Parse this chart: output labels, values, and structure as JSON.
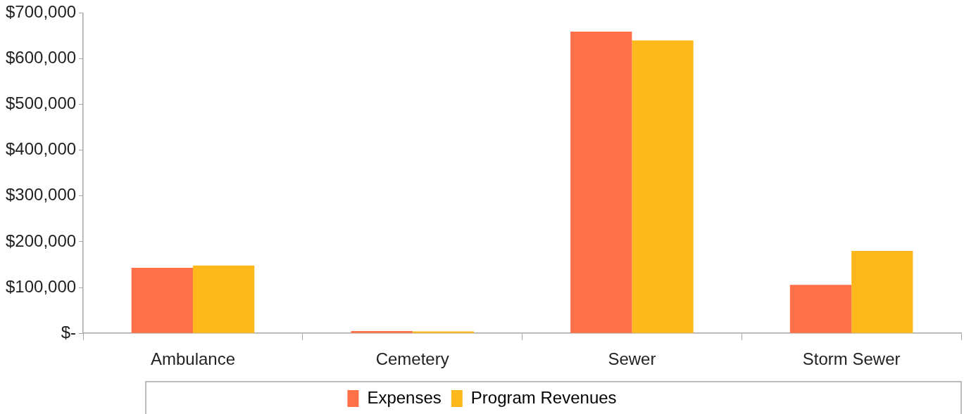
{
  "chart_data": {
    "type": "bar",
    "categories": [
      "Ambulance",
      "Cemetery",
      "Sewer",
      "Storm Sewer"
    ],
    "series": [
      {
        "name": "Expenses",
        "color": "#ff7049",
        "values": [
          143000,
          5000,
          659000,
          106000
        ]
      },
      {
        "name": "Program Revenues",
        "color": "#ffb81c",
        "values": [
          148000,
          4000,
          640000,
          180000
        ]
      }
    ],
    "ylim": [
      0,
      700000
    ],
    "yticks": [
      {
        "value": 0,
        "label": "$-"
      },
      {
        "value": 100000,
        "label": "$100,000"
      },
      {
        "value": 200000,
        "label": "$200,000"
      },
      {
        "value": 300000,
        "label": "$300,000"
      },
      {
        "value": 400000,
        "label": "$400,000"
      },
      {
        "value": 500000,
        "label": "$500,000"
      },
      {
        "value": 600000,
        "label": "$600,000"
      },
      {
        "value": 700000,
        "label": "$700,000"
      }
    ],
    "grid": false,
    "legend": "bottom"
  }
}
